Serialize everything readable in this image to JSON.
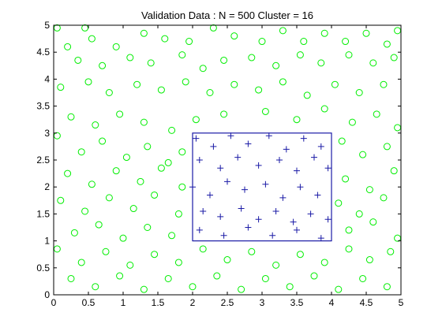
{
  "chart_data": {
    "type": "scatter",
    "title": "Validation Data : N = 500 Cluster = 16",
    "xlabel": "",
    "ylabel": "",
    "xlim": [
      0,
      5
    ],
    "ylim": [
      0,
      5
    ],
    "grid": false,
    "x_ticks": [
      "0",
      "0.5",
      "1",
      "1.5",
      "2",
      "2.5",
      "3",
      "3.5",
      "4",
      "4.5",
      "5"
    ],
    "y_ticks": [
      "0",
      "0.5",
      "1",
      "1.5",
      "2",
      "2.5",
      "3",
      "3.5",
      "4",
      "4.5",
      "5"
    ],
    "region": {
      "x": [
        2,
        4
      ],
      "y": [
        1,
        3
      ]
    },
    "series": [
      {
        "marker": "circle",
        "color": "#00ee00",
        "points": [
          [
            0.05,
            4.95
          ],
          [
            0.2,
            4.6
          ],
          [
            0.45,
            4.95
          ],
          [
            0.55,
            4.75
          ],
          [
            0.9,
            4.6
          ],
          [
            1.3,
            4.85
          ],
          [
            1.6,
            4.75
          ],
          [
            1.95,
            4.7
          ],
          [
            2.3,
            4.95
          ],
          [
            2.6,
            4.8
          ],
          [
            3.0,
            4.7
          ],
          [
            3.3,
            4.9
          ],
          [
            3.6,
            4.7
          ],
          [
            3.9,
            4.85
          ],
          [
            4.2,
            4.7
          ],
          [
            4.5,
            4.85
          ],
          [
            4.8,
            4.65
          ],
          [
            4.95,
            4.9
          ],
          [
            0.35,
            4.35
          ],
          [
            0.7,
            4.25
          ],
          [
            1.1,
            4.4
          ],
          [
            1.4,
            4.3
          ],
          [
            1.85,
            4.45
          ],
          [
            2.15,
            4.2
          ],
          [
            2.45,
            4.35
          ],
          [
            2.85,
            4.4
          ],
          [
            3.2,
            4.25
          ],
          [
            3.55,
            4.45
          ],
          [
            3.85,
            4.3
          ],
          [
            4.25,
            4.45
          ],
          [
            4.6,
            4.3
          ],
          [
            4.9,
            4.4
          ],
          [
            0.1,
            3.85
          ],
          [
            0.5,
            3.95
          ],
          [
            0.8,
            3.75
          ],
          [
            1.2,
            3.9
          ],
          [
            1.55,
            3.8
          ],
          [
            1.9,
            3.95
          ],
          [
            2.25,
            3.75
          ],
          [
            2.6,
            3.9
          ],
          [
            2.95,
            3.8
          ],
          [
            3.3,
            3.95
          ],
          [
            3.65,
            3.7
          ],
          [
            4.05,
            3.9
          ],
          [
            4.4,
            3.75
          ],
          [
            4.75,
            3.9
          ],
          [
            0.25,
            3.3
          ],
          [
            0.6,
            3.15
          ],
          [
            0.95,
            3.35
          ],
          [
            1.3,
            3.2
          ],
          [
            1.7,
            3.05
          ],
          [
            2.05,
            3.25
          ],
          [
            2.45,
            3.35
          ],
          [
            3.05,
            3.4
          ],
          [
            3.5,
            3.25
          ],
          [
            3.9,
            3.45
          ],
          [
            4.3,
            3.2
          ],
          [
            4.65,
            3.35
          ],
          [
            4.95,
            3.1
          ],
          [
            0.05,
            2.95
          ],
          [
            0.4,
            2.65
          ],
          [
            0.7,
            2.85
          ],
          [
            1.05,
            2.55
          ],
          [
            1.35,
            2.75
          ],
          [
            1.65,
            2.45
          ],
          [
            1.85,
            2.65
          ],
          [
            4.15,
            2.85
          ],
          [
            4.45,
            2.6
          ],
          [
            4.8,
            2.75
          ],
          [
            0.2,
            2.25
          ],
          [
            0.55,
            2.05
          ],
          [
            0.9,
            2.3
          ],
          [
            1.25,
            2.1
          ],
          [
            1.55,
            2.35
          ],
          [
            1.85,
            2.0
          ],
          [
            4.2,
            2.15
          ],
          [
            4.55,
            1.95
          ],
          [
            4.9,
            2.3
          ],
          [
            0.1,
            1.75
          ],
          [
            0.45,
            1.55
          ],
          [
            0.8,
            1.8
          ],
          [
            1.15,
            1.6
          ],
          [
            1.45,
            1.85
          ],
          [
            1.8,
            1.5
          ],
          [
            4.1,
            1.7
          ],
          [
            4.4,
            1.5
          ],
          [
            4.75,
            1.8
          ],
          [
            0.3,
            1.15
          ],
          [
            0.65,
            1.3
          ],
          [
            1.0,
            1.05
          ],
          [
            1.35,
            1.25
          ],
          [
            1.7,
            1.1
          ],
          [
            4.25,
            1.2
          ],
          [
            4.6,
            1.35
          ],
          [
            4.95,
            1.05
          ],
          [
            0.05,
            0.85
          ],
          [
            0.4,
            0.6
          ],
          [
            0.75,
            0.8
          ],
          [
            1.1,
            0.55
          ],
          [
            1.45,
            0.75
          ],
          [
            1.8,
            0.6
          ],
          [
            2.15,
            0.85
          ],
          [
            2.5,
            0.65
          ],
          [
            2.85,
            0.8
          ],
          [
            3.2,
            0.55
          ],
          [
            3.55,
            0.75
          ],
          [
            3.9,
            0.6
          ],
          [
            4.25,
            0.85
          ],
          [
            4.55,
            0.65
          ],
          [
            4.85,
            0.8
          ],
          [
            0.25,
            0.3
          ],
          [
            0.6,
            0.15
          ],
          [
            0.95,
            0.35
          ],
          [
            1.3,
            0.1
          ],
          [
            1.65,
            0.3
          ],
          [
            2.0,
            0.15
          ],
          [
            2.35,
            0.35
          ],
          [
            2.7,
            0.1
          ],
          [
            3.05,
            0.3
          ],
          [
            3.4,
            0.15
          ],
          [
            3.75,
            0.35
          ],
          [
            4.1,
            0.1
          ],
          [
            4.45,
            0.3
          ],
          [
            4.8,
            0.15
          ]
        ]
      },
      {
        "marker": "plus",
        "color": "#1a1aa6",
        "points": [
          [
            2.05,
            2.9
          ],
          [
            2.3,
            2.75
          ],
          [
            2.55,
            2.95
          ],
          [
            2.8,
            2.8
          ],
          [
            3.1,
            2.95
          ],
          [
            3.35,
            2.7
          ],
          [
            3.6,
            2.9
          ],
          [
            3.85,
            2.75
          ],
          [
            2.1,
            2.5
          ],
          [
            2.4,
            2.35
          ],
          [
            2.65,
            2.55
          ],
          [
            2.95,
            2.4
          ],
          [
            3.25,
            2.5
          ],
          [
            3.5,
            2.3
          ],
          [
            3.75,
            2.55
          ],
          [
            3.95,
            2.35
          ],
          [
            2.0,
            2.0
          ],
          [
            2.25,
            1.85
          ],
          [
            2.5,
            2.1
          ],
          [
            2.75,
            1.95
          ],
          [
            3.05,
            2.05
          ],
          [
            3.3,
            1.8
          ],
          [
            3.55,
            2.0
          ],
          [
            3.8,
            1.85
          ],
          [
            2.15,
            1.55
          ],
          [
            2.4,
            1.45
          ],
          [
            2.7,
            1.6
          ],
          [
            2.95,
            1.4
          ],
          [
            3.2,
            1.55
          ],
          [
            3.45,
            1.35
          ],
          [
            3.7,
            1.5
          ],
          [
            3.95,
            1.4
          ],
          [
            2.1,
            1.2
          ],
          [
            2.45,
            1.1
          ],
          [
            2.8,
            1.25
          ],
          [
            3.15,
            1.1
          ],
          [
            3.5,
            1.2
          ],
          [
            3.85,
            1.05
          ]
        ]
      }
    ]
  }
}
